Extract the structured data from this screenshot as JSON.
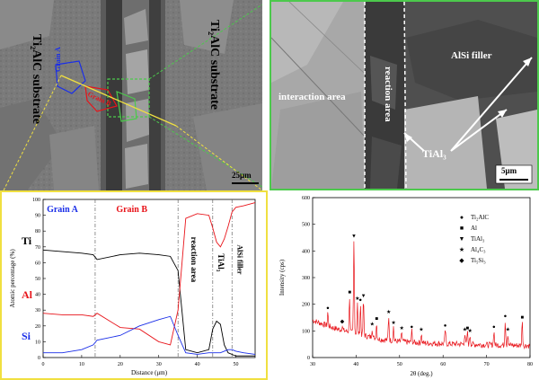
{
  "left_image": {
    "substrate_left": "Ti₂AlC substrate",
    "substrate_right": "Ti₂AlC substrate",
    "grain_a": "Grain A",
    "grain_b": "Grain B",
    "scale": "25μm"
  },
  "right_image": {
    "interaction_area": "interaction area",
    "reaction_area": "reaction area",
    "alsi_filler": "AlSi filler",
    "tial3": "TiAl₃",
    "scale": "5μm"
  },
  "colors": {
    "ti": "#000000",
    "al": "#e8141a",
    "si": "#1a2ee8",
    "green_box": "#4cc94c",
    "yellow_box": "#f0e040",
    "xrd_line": "#e8141a"
  },
  "chart_data": [
    {
      "type": "line",
      "xlabel": "Distance (μm)",
      "ylabel": "Atomic percentage (%)",
      "xlim": [
        0,
        55
      ],
      "ylim": [
        0,
        100
      ],
      "x_ticks": [
        0,
        10,
        20,
        30,
        40,
        50
      ],
      "y_ticks": [
        0,
        10,
        20,
        30,
        40,
        50,
        60,
        70,
        80,
        90,
        100
      ],
      "region_labels": [
        "Grain A",
        "Grain B",
        "reaction area",
        "TiAl₃",
        "AlSi filler"
      ],
      "boundaries": [
        13.5,
        35,
        44,
        49
      ],
      "series": [
        {
          "name": "Ti",
          "x": [
            0,
            5,
            10,
            13,
            14,
            20,
            25,
            30,
            33,
            35,
            37,
            40,
            43,
            44,
            45,
            46,
            47,
            48,
            49,
            50,
            52,
            55
          ],
          "y": [
            68,
            67,
            66,
            65,
            62,
            65,
            66,
            65,
            64,
            55,
            5,
            3,
            5,
            18,
            23,
            21,
            8,
            3,
            2,
            1,
            1,
            1
          ]
        },
        {
          "name": "Al",
          "x": [
            0,
            5,
            10,
            13,
            14,
            20,
            25,
            30,
            33,
            35,
            37,
            40,
            43,
            44,
            45,
            46,
            47,
            48,
            49,
            50,
            52,
            55
          ],
          "y": [
            28,
            27,
            27,
            26,
            28,
            19,
            18,
            10,
            8,
            30,
            88,
            91,
            90,
            82,
            73,
            70,
            75,
            83,
            92,
            95,
            96,
            98
          ]
        },
        {
          "name": "Si",
          "x": [
            0,
            5,
            10,
            13,
            14,
            20,
            25,
            30,
            33,
            35,
            37,
            40,
            43,
            44,
            45,
            46,
            47,
            48,
            49,
            50,
            52,
            55
          ],
          "y": [
            3,
            3,
            5,
            8,
            11,
            14,
            20,
            24,
            26,
            14,
            3,
            2,
            3,
            3,
            3,
            3,
            4,
            5,
            5,
            4,
            3,
            2
          ]
        }
      ]
    },
    {
      "type": "line",
      "xlabel": "2θ (deg.)",
      "ylabel": "Intensity (cps)",
      "xlim": [
        30,
        80
      ],
      "ylim": [
        0,
        600
      ],
      "x_ticks": [
        30,
        40,
        50,
        60,
        70,
        80
      ],
      "y_ticks": [
        0,
        100,
        200,
        300,
        400,
        500,
        600
      ],
      "legend": [
        {
          "marker": "●",
          "label": "Ti₂AlC"
        },
        {
          "marker": "■",
          "label": "Al"
        },
        {
          "marker": "▼",
          "label": "TiAl₃"
        },
        {
          "marker": "★",
          "label": "Al₄C₃"
        },
        {
          "marker": "◆",
          "label": "Ti₅Si₃"
        }
      ],
      "peaks": [
        {
          "x": 33.5,
          "y": 170,
          "marker": "●"
        },
        {
          "x": 36.8,
          "y": 120,
          "marker": "◆"
        },
        {
          "x": 38.5,
          "y": 230,
          "marker": "■"
        },
        {
          "x": 39.5,
          "y": 440,
          "marker": "▼"
        },
        {
          "x": 40.3,
          "y": 205,
          "marker": "★"
        },
        {
          "x": 41.0,
          "y": 200,
          "marker": "●"
        },
        {
          "x": 41.7,
          "y": 215,
          "marker": "▼"
        },
        {
          "x": 43.7,
          "y": 110,
          "marker": "★"
        },
        {
          "x": 44.7,
          "y": 130,
          "marker": "■"
        },
        {
          "x": 47.5,
          "y": 155,
          "marker": "★"
        },
        {
          "x": 48.6,
          "y": 115,
          "marker": "★"
        },
        {
          "x": 50.5,
          "y": 95,
          "marker": "★"
        },
        {
          "x": 52.8,
          "y": 100,
          "marker": "●"
        },
        {
          "x": 55.0,
          "y": 90,
          "marker": "★"
        },
        {
          "x": 60.5,
          "y": 105,
          "marker": "●"
        },
        {
          "x": 65.0,
          "y": 90,
          "marker": "★"
        },
        {
          "x": 65.6,
          "y": 95,
          "marker": "■"
        },
        {
          "x": 66.2,
          "y": 85,
          "marker": "★"
        },
        {
          "x": 71.7,
          "y": 100,
          "marker": "●"
        },
        {
          "x": 74.3,
          "y": 140,
          "marker": "●"
        },
        {
          "x": 74.9,
          "y": 90,
          "marker": "★"
        },
        {
          "x": 78.2,
          "y": 135,
          "marker": "■"
        }
      ],
      "baseline": [
        [
          30,
          140
        ],
        [
          35,
          110
        ],
        [
          40,
          90
        ],
        [
          45,
          70
        ],
        [
          50,
          60
        ],
        [
          55,
          55
        ],
        [
          60,
          52
        ],
        [
          65,
          50
        ],
        [
          70,
          48
        ],
        [
          75,
          46
        ],
        [
          80,
          45
        ]
      ]
    }
  ]
}
